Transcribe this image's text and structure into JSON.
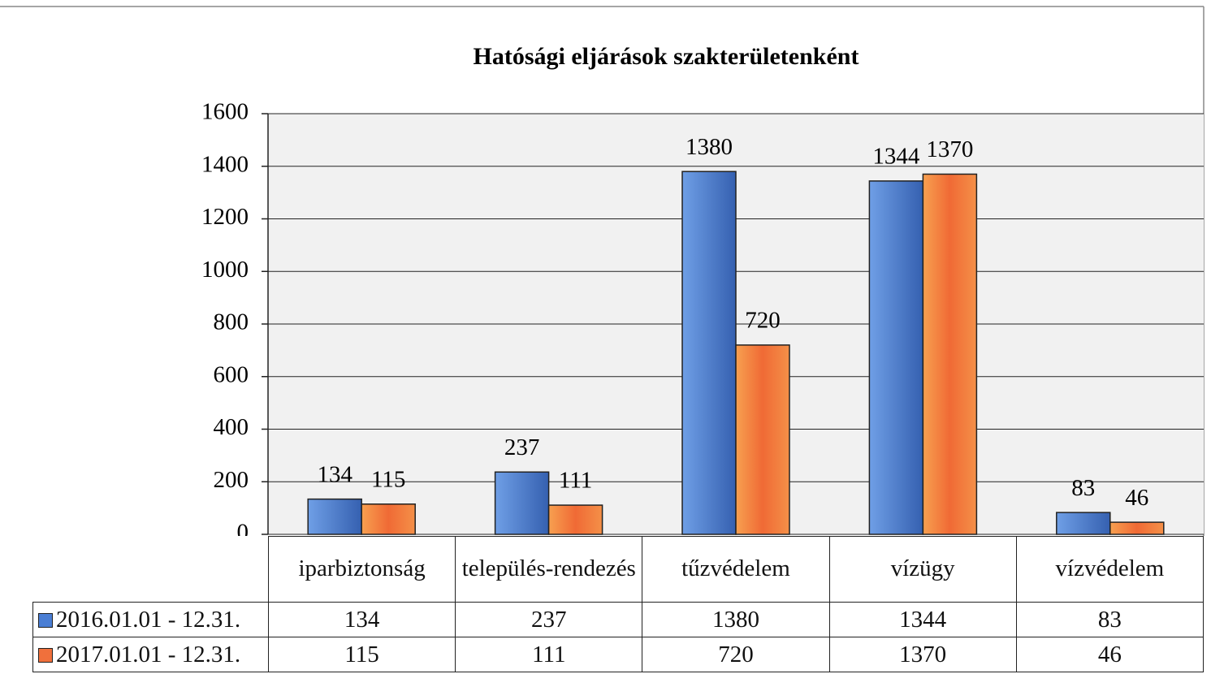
{
  "chart_data": {
    "type": "bar",
    "title": "Hatósági eljárások szakterületenként",
    "categories": [
      "iparbiztonság",
      "település-rendezés",
      "tűzvédelem",
      "vízügy",
      "vízvédelem"
    ],
    "series": [
      {
        "name": "2016.01.01 - 12.31.",
        "color": "#4a7ed4",
        "values": [
          134,
          237,
          1380,
          1344,
          83
        ]
      },
      {
        "name": "2017.01.01 - 12.31.",
        "color": "#f0703c",
        "values": [
          115,
          111,
          720,
          1370,
          46
        ]
      }
    ],
    "ylim": [
      0,
      1600
    ],
    "yticks": [
      0,
      200,
      400,
      600,
      800,
      1000,
      1200,
      1400,
      1600
    ],
    "grid": true
  }
}
